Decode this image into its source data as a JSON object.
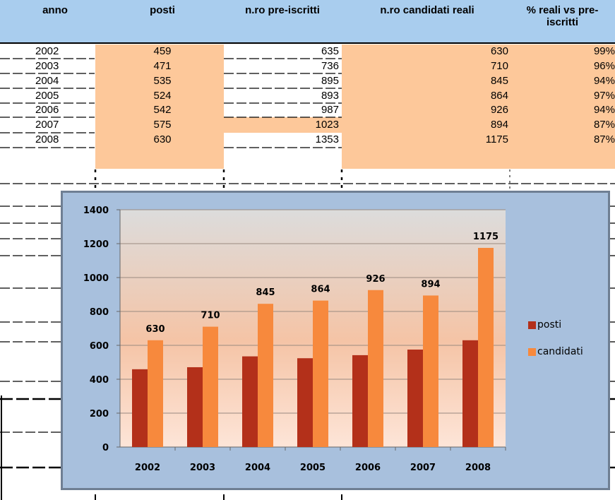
{
  "table": {
    "headers": {
      "anno": "anno",
      "posti": "posti",
      "preiscritti": "n.ro pre-iscritti",
      "candidati": "n.ro candidati reali",
      "percent_line1": "% reali vs pre-",
      "percent_line2": "iscritti"
    },
    "rows": [
      {
        "anno": "2002",
        "posti": "459",
        "pre": "635",
        "cand": "630",
        "pct": "99%"
      },
      {
        "anno": "2003",
        "posti": "471",
        "pre": "736",
        "cand": "710",
        "pct": "96%"
      },
      {
        "anno": "2004",
        "posti": "535",
        "pre": "895",
        "cand": "845",
        "pct": "94%"
      },
      {
        "anno": "2005",
        "posti": "524",
        "pre": "893",
        "cand": "864",
        "pct": "97%"
      },
      {
        "anno": "2006",
        "posti": "542",
        "pre": "987",
        "cand": "926",
        "pct": "94%"
      },
      {
        "anno": "2007",
        "posti": "575",
        "pre": "1023",
        "cand": "894",
        "pct": "87%"
      },
      {
        "anno": "2008",
        "posti": "630",
        "pre": "1353",
        "cand": "1175",
        "pct": "87%"
      }
    ]
  },
  "colors": {
    "header_bg": "#a9cdee",
    "highlight": "#fdc89a",
    "chart_frame": "#a8c0dd",
    "posti": "#b3301a",
    "candidati": "#f7893d"
  },
  "chart_data": {
    "type": "bar",
    "categories": [
      "2002",
      "2003",
      "2004",
      "2005",
      "2006",
      "2007",
      "2008"
    ],
    "series": [
      {
        "name": "posti",
        "values": [
          459,
          471,
          535,
          524,
          542,
          575,
          630
        ]
      },
      {
        "name": "candidati",
        "values": [
          630,
          710,
          845,
          864,
          926,
          894,
          1175
        ]
      }
    ],
    "data_labels_series": "candidati",
    "ylim": [
      0,
      1400
    ],
    "yticks": [
      0,
      200,
      400,
      600,
      800,
      1000,
      1200,
      1400
    ],
    "grid": true,
    "legend": "right"
  }
}
